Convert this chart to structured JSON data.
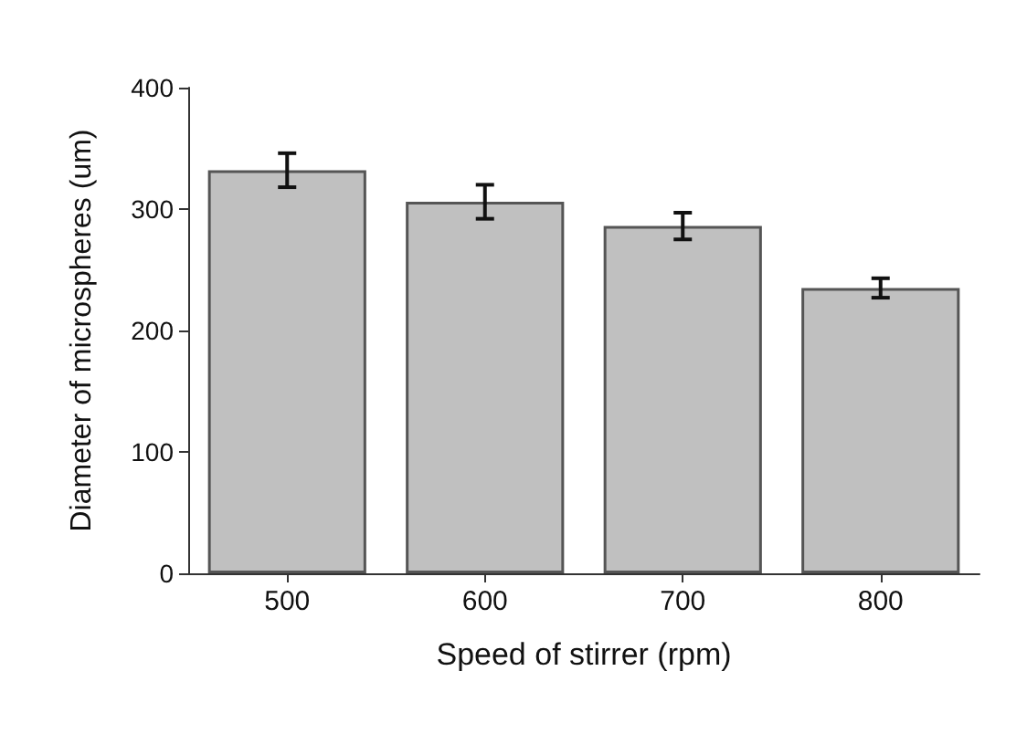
{
  "chart_data": {
    "type": "bar",
    "xlabel": "Speed of stirrer (rpm)",
    "ylabel": "Diameter of microspheres (um)",
    "categories": [
      "500",
      "600",
      "700",
      "800"
    ],
    "values": [
      332,
      306,
      286,
      235
    ],
    "errors": [
      14,
      14,
      11,
      8
    ],
    "color": "#c0c0c0",
    "ylim": [
      0,
      400
    ],
    "yticks": [
      0,
      100,
      200,
      300,
      400
    ],
    "grid": false
  }
}
